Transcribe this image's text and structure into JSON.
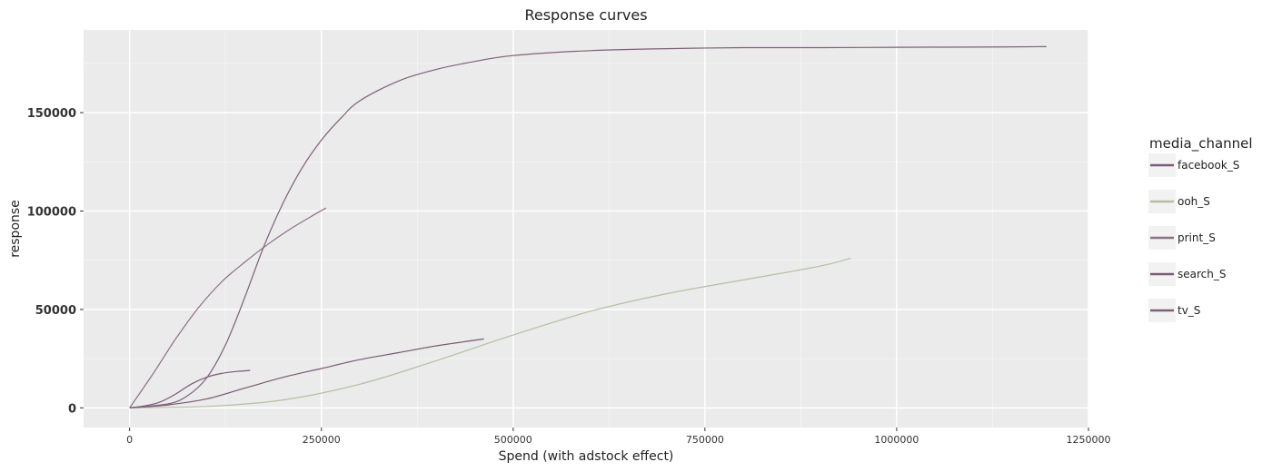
{
  "chart_data": {
    "type": "line",
    "title": "Response curves",
    "xlabel": "Spend (with adstock effect)",
    "ylabel": "response",
    "xlim": [
      -60000,
      1250000
    ],
    "ylim": [
      -10000,
      192000
    ],
    "x_ticks": [
      0,
      250000,
      500000,
      750000,
      1000000,
      1250000
    ],
    "x_tick_labels": [
      "0",
      "250000",
      "500000",
      "750000",
      "1000000",
      "1250000"
    ],
    "y_ticks": [
      0,
      50000,
      100000,
      150000
    ],
    "y_tick_labels": [
      "0",
      "50000",
      "100000",
      "150000"
    ],
    "grid": true,
    "legend": {
      "title": "media_channel",
      "placement": "right"
    },
    "series": [
      {
        "name": "facebook_S",
        "color": "#7a5a78",
        "x": [
          0,
          20000,
          40000,
          60000,
          80000,
          100000,
          120000,
          140000,
          157000
        ],
        "y": [
          0,
          1000,
          3000,
          7000,
          12000,
          15500,
          17500,
          18500,
          19000
        ]
      },
      {
        "name": "ooh_S",
        "color": "#b4bfa2",
        "x": [
          0,
          100000,
          200000,
          300000,
          400000,
          500000,
          600000,
          700000,
          800000,
          900000,
          940000
        ],
        "y": [
          0,
          700,
          4000,
          12000,
          24000,
          37000,
          49000,
          58000,
          65000,
          72000,
          76000
        ]
      },
      {
        "name": "print_S",
        "color": "#8d6f86",
        "x": [
          0,
          30000,
          60000,
          90000,
          120000,
          150000,
          180000,
          210000,
          240000,
          256000
        ],
        "y": [
          0,
          17000,
          35000,
          51000,
          64000,
          74000,
          83000,
          91000,
          98000,
          101500
        ]
      },
      {
        "name": "search_S",
        "color": "#765a73",
        "x": [
          0,
          50000,
          100000,
          150000,
          200000,
          250000,
          300000,
          350000,
          400000,
          462000
        ],
        "y": [
          0,
          1500,
          4500,
          10000,
          15500,
          20000,
          24500,
          28000,
          31500,
          35000
        ]
      },
      {
        "name": "tv_S",
        "color": "#7f5e7b",
        "x": [
          0,
          50000,
          75000,
          100000,
          125000,
          150000,
          175000,
          200000,
          225000,
          250000,
          275000,
          300000,
          350000,
          400000,
          450000,
          500000,
          600000,
          700000,
          800000,
          900000,
          1000000,
          1100000,
          1195000
        ],
        "y": [
          0,
          2000,
          6000,
          15000,
          32000,
          56000,
          82000,
          104000,
          122000,
          136000,
          147000,
          156000,
          166000,
          172000,
          176000,
          179000,
          181500,
          182500,
          183000,
          183000,
          183200,
          183300,
          183500
        ]
      }
    ]
  }
}
